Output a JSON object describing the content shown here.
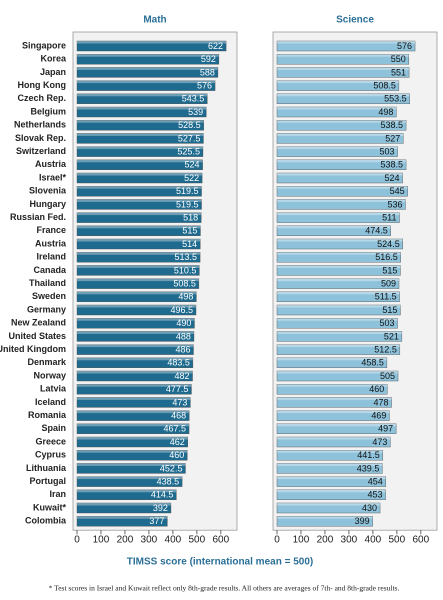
{
  "chart_data": [
    {
      "type": "bar",
      "title": "Math",
      "categories": [
        "Singapore",
        "Korea",
        "Japan",
        "Hong Kong",
        "Czech Rep.",
        "Belgium",
        "Netherlands",
        "Slovak Rep.",
        "Switzerland",
        "Austria",
        "Israel*",
        "Slovenia",
        "Hungary",
        "Russian Fed.",
        "France",
        "Austria",
        "Ireland",
        "Canada",
        "Thailand",
        "Sweden",
        "Germany",
        "New Zealand",
        "United States",
        "United Kingdom",
        "Denmark",
        "Norway",
        "Latvia",
        "Iceland",
        "Romania",
        "Spain",
        "Greece",
        "Cyprus",
        "Lithuania",
        "Portugal",
        "Iran",
        "Kuwait*",
        "Colombia"
      ],
      "values": [
        622,
        592,
        588,
        576,
        543.5,
        539,
        528.5,
        527.5,
        525.5,
        524,
        522,
        519.5,
        519.5,
        518,
        515,
        514,
        513.5,
        510.5,
        508.5,
        498,
        496.5,
        490,
        488,
        486,
        483.5,
        482,
        477.5,
        473,
        468,
        467.5,
        462,
        460,
        452.5,
        438.5,
        414.5,
        392,
        377
      ],
      "color": "#1f6b8f",
      "label_color": "#ffffff",
      "highlight": "United States",
      "highlight_color": "#2a7fc0",
      "xlim": [
        0,
        630
      ],
      "xticks": [
        0,
        100,
        200,
        300,
        400,
        500,
        600
      ]
    },
    {
      "type": "bar",
      "title": "Science",
      "values": [
        576,
        550,
        551,
        508.5,
        553.5,
        498,
        538.5,
        527,
        503,
        538.5,
        524,
        545,
        536,
        511,
        474.5,
        524.5,
        516.5,
        515,
        509,
        511.5,
        515,
        503,
        521,
        512.5,
        458.5,
        505,
        460,
        478,
        469,
        497,
        473,
        441.5,
        439.5,
        454,
        453,
        430,
        399
      ],
      "color": "#8ec2da",
      "label_color": "#111111",
      "xlim": [
        0,
        630
      ],
      "xticks": [
        0,
        100,
        200,
        300,
        400,
        500,
        600
      ]
    }
  ],
  "xlabel": "TIMSS score (international mean = 500)",
  "footnote": "* Test scores in Israel and Kuwait reflect only 8th-grade results. All others are averages of 7th- and 8th-grade results."
}
